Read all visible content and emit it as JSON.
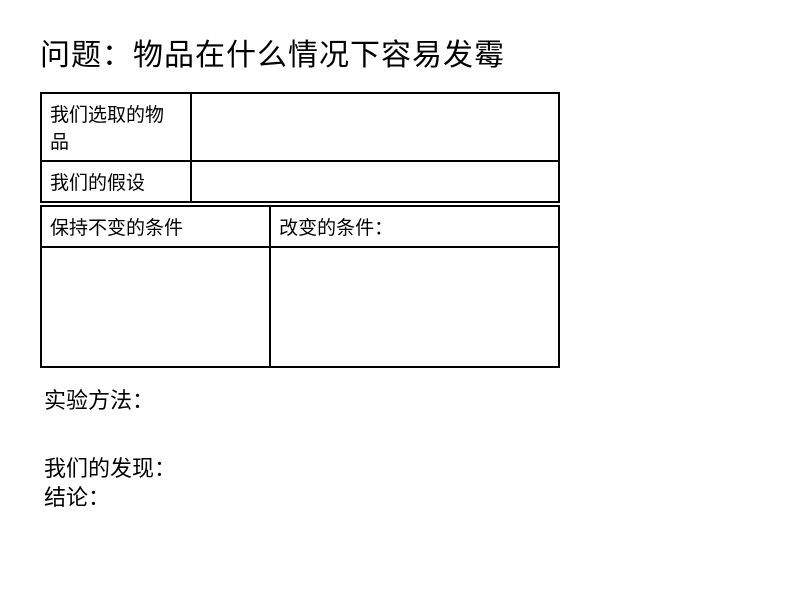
{
  "title": "问题：物品在什么情况下容易发霉",
  "table1": {
    "row1_label": "我们选取的物品",
    "row1_value": "",
    "row2_label": "我们的假设",
    "row2_value": ""
  },
  "table2": {
    "left_header": "保持不变的条件",
    "right_header": "改变的条件：",
    "left_body": "",
    "right_body": ""
  },
  "section_method": "实验方法：",
  "section_finding": "我们的发现：",
  "section_conclusion": "结论："
}
